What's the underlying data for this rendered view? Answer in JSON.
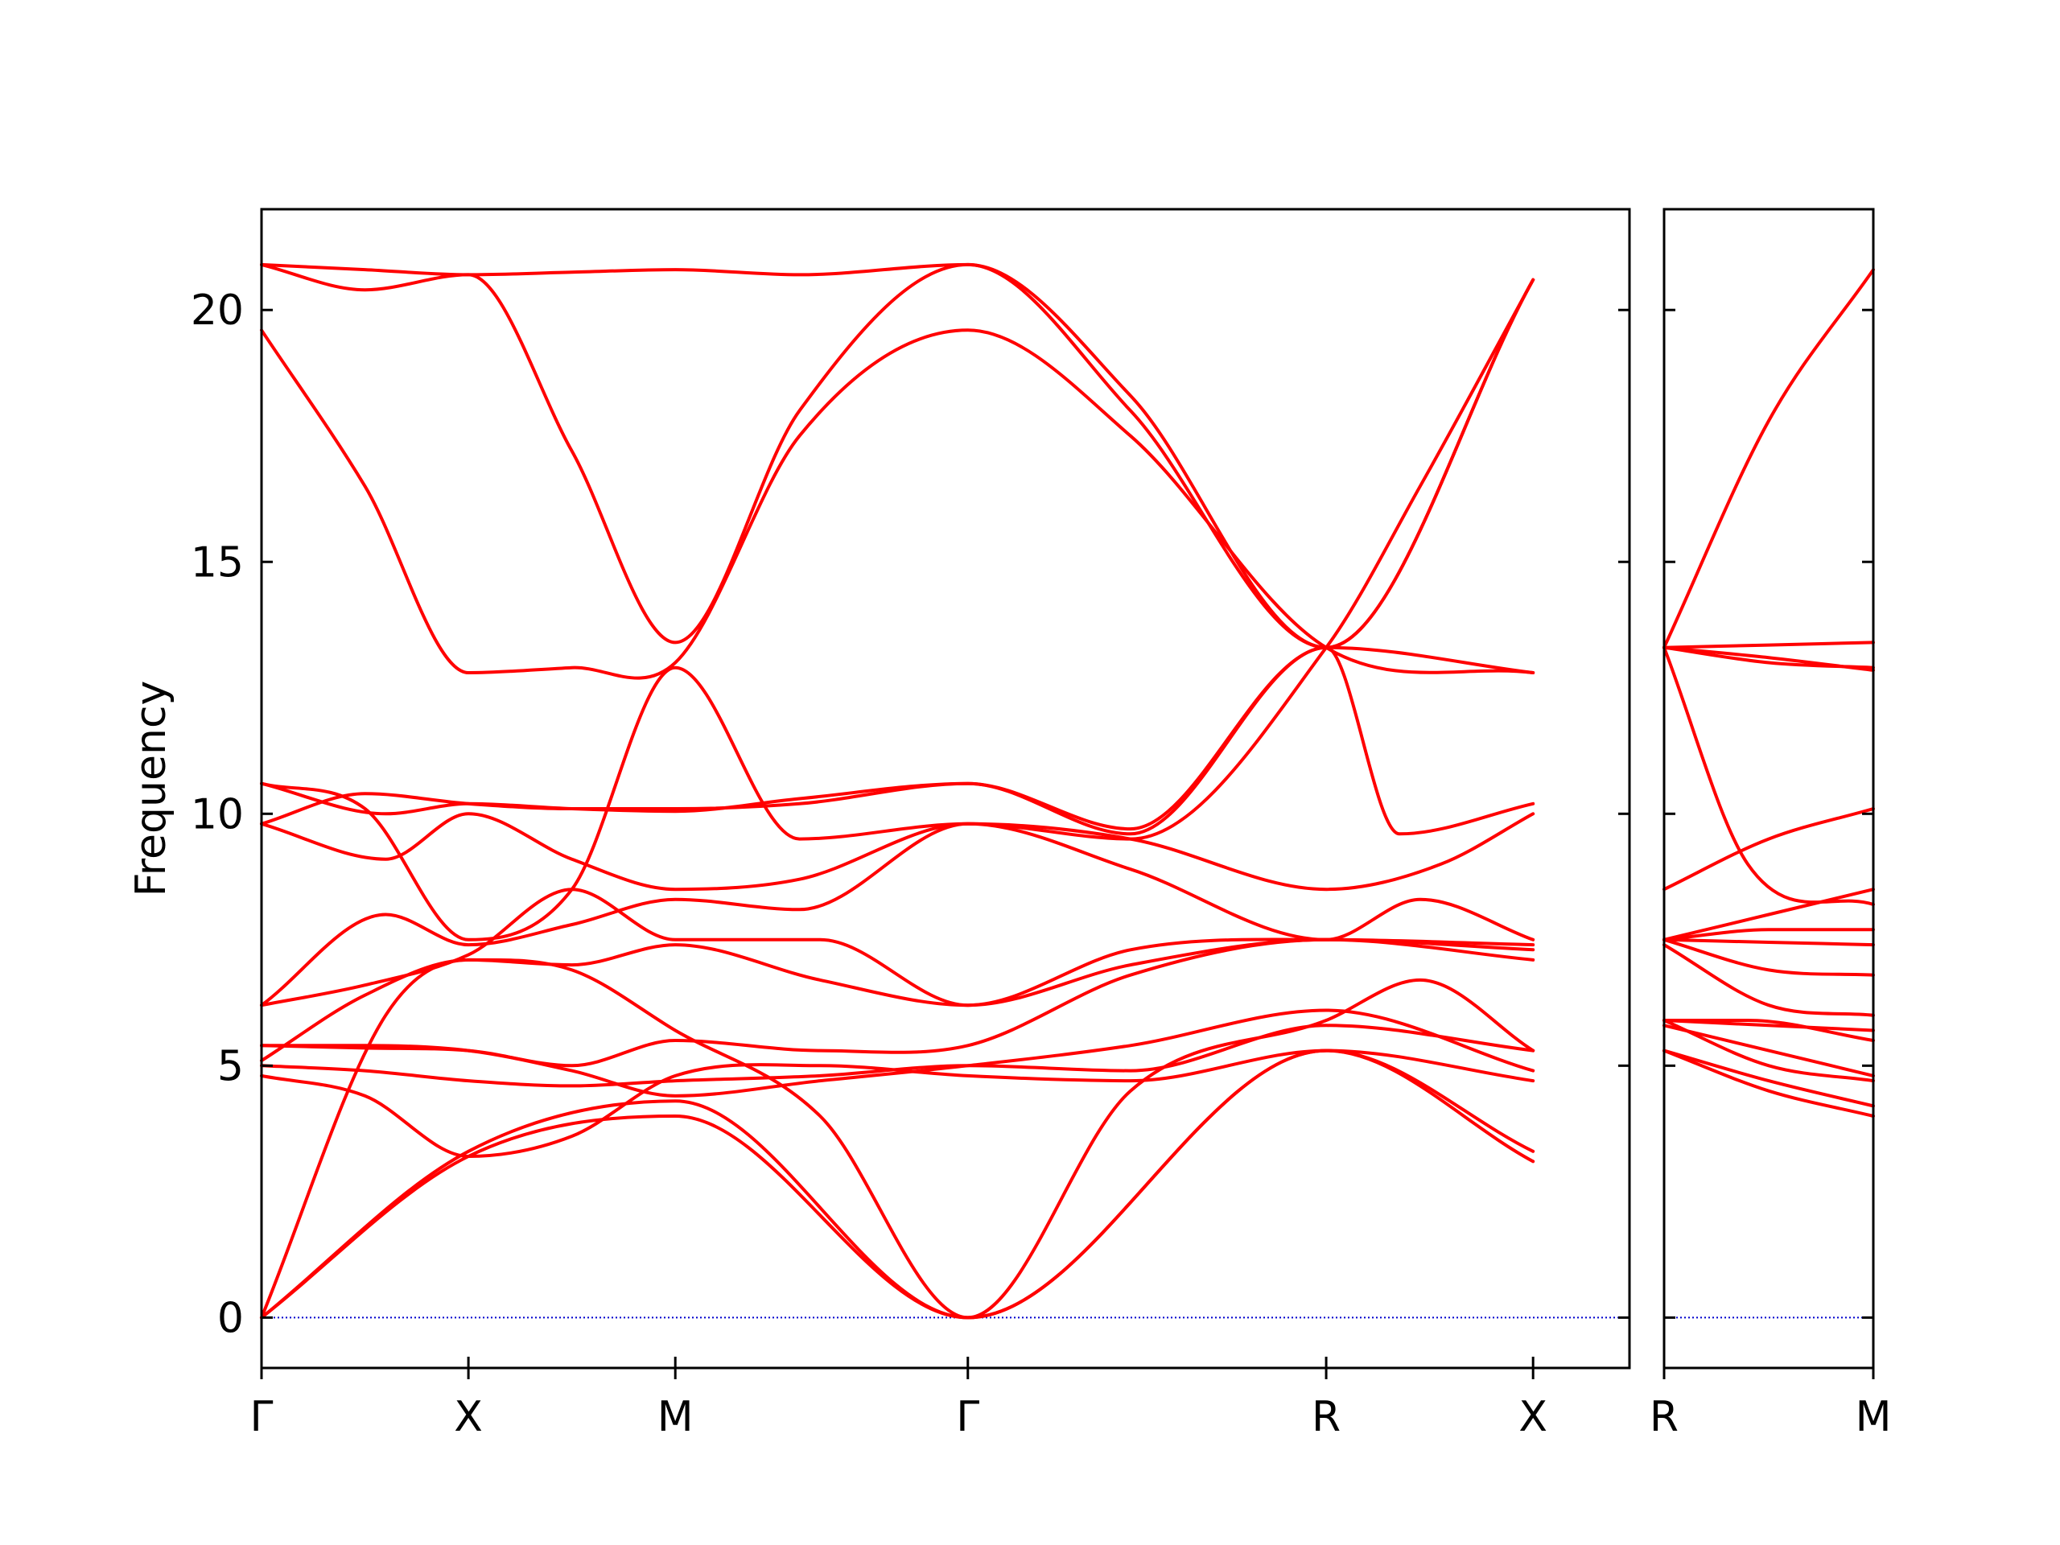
{
  "chart_data": {
    "type": "line",
    "title": "",
    "ylabel": "Frequency",
    "xlabel": "",
    "ylim": [
      -1,
      22
    ],
    "yticks": [
      0,
      5,
      10,
      15,
      20
    ],
    "line_color": "#ff0000",
    "zero_line_color": "#0000cc",
    "panels": [
      {
        "name": "main",
        "x_range": [
          0,
          6.612
        ],
        "labels": [
          {
            "x": 0.0,
            "label": "Γ"
          },
          {
            "x": 1.0,
            "label": "X"
          },
          {
            "x": 2.0,
            "label": "M"
          },
          {
            "x": 3.414,
            "label": "Γ"
          },
          {
            "x": 5.146,
            "label": "R"
          },
          {
            "x": 6.146,
            "label": "X"
          }
        ],
        "series": [
          {
            "x": [
              0,
              1,
              2,
              3.414,
              5.146,
              6.146
            ],
            "y": [
              0,
              3.2,
              4.0,
              0,
              5.3,
              3.1
            ]
          },
          {
            "x": [
              0,
              1,
              2,
              3.414,
              5.146,
              6.146
            ],
            "y": [
              0,
              3.3,
              4.3,
              0,
              5.3,
              3.3
            ]
          },
          {
            "x": [
              0,
              0.6,
              1,
              1.5,
              2,
              2.7,
              3.414,
              4.2,
              5.146,
              5.6,
              6.146
            ],
            "y": [
              0,
              6.0,
              7.1,
              6.9,
              5.7,
              4.0,
              0,
              4.5,
              5.9,
              6.7,
              5.3
            ]
          },
          {
            "x": [
              0,
              0.5,
              1,
              1.5,
              2,
              2.7,
              3.414,
              4.2,
              5.146,
              6.146
            ],
            "y": [
              4.8,
              4.4,
              3.2,
              3.6,
              4.8,
              5.0,
              4.8,
              4.7,
              5.3,
              4.7
            ]
          },
          {
            "x": [
              0,
              0.5,
              1,
              1.5,
              2,
              2.7,
              3.414,
              4.2,
              5.146,
              6.146
            ],
            "y": [
              5.0,
              4.9,
              4.7,
              4.6,
              4.7,
              4.8,
              5.0,
              4.9,
              5.8,
              5.3
            ]
          },
          {
            "x": [
              0,
              0.5,
              1,
              1.5,
              2,
              2.7,
              3.414,
              4.2,
              5.146,
              6.146
            ],
            "y": [
              5.4,
              5.4,
              5.3,
              4.9,
              4.4,
              4.7,
              5.0,
              5.4,
              6.1,
              4.9
            ]
          },
          {
            "x": [
              0,
              0.5,
              1,
              1.5,
              2,
              2.7,
              3.414,
              4.2,
              5.146,
              6.146
            ],
            "y": [
              5.4,
              5.35,
              5.3,
              5.0,
              5.5,
              5.3,
              5.4,
              6.8,
              7.5,
              7.1
            ]
          },
          {
            "x": [
              0,
              0.5,
              1,
              1.5,
              2,
              2.7,
              3.414,
              4.2,
              5.146,
              6.146
            ],
            "y": [
              5.1,
              6.4,
              7.1,
              7.0,
              7.4,
              6.7,
              6.2,
              7.3,
              7.5,
              7.3
            ]
          },
          {
            "x": [
              0,
              0.5,
              1,
              1.5,
              2,
              2.7,
              3.414,
              4.2,
              5.146,
              6.146
            ],
            "y": [
              6.2,
              6.6,
              7.2,
              8.5,
              7.5,
              7.5,
              6.2,
              7.0,
              7.5,
              7.4
            ]
          },
          {
            "x": [
              0,
              0.6,
              1,
              1.5,
              2,
              2.6,
              3.414,
              4.2,
              5.146,
              5.7,
              6.146
            ],
            "y": [
              6.2,
              8.0,
              7.4,
              7.8,
              8.3,
              8.1,
              9.8,
              9.5,
              8.5,
              9.0,
              10.0
            ]
          },
          {
            "x": [
              0,
              0.6,
              1,
              1.5,
              2,
              2.6,
              3.414,
              4.2,
              5.146,
              5.6,
              6.146
            ],
            "y": [
              9.8,
              9.1,
              10.0,
              9.1,
              8.5,
              8.7,
              9.8,
              8.9,
              7.5,
              8.3,
              7.5
            ]
          },
          {
            "x": [
              0,
              0.6,
              1,
              1.5,
              2,
              2.6,
              3.414,
              4.2,
              5.146,
              5.5,
              6.146
            ],
            "y": [
              10.6,
              10.0,
              10.2,
              10.1,
              10.05,
              10.3,
              10.6,
              9.6,
              13.3,
              9.6,
              10.2
            ]
          },
          {
            "x": [
              0,
              0.5,
              1,
              1.5,
              2,
              2.6,
              3.414,
              4.2,
              5.146,
              6.146
            ],
            "y": [
              9.8,
              10.4,
              10.2,
              10.1,
              10.1,
              10.2,
              10.6,
              9.7,
              13.3,
              12.8
            ]
          },
          {
            "x": [
              0,
              0.5,
              1,
              1.5,
              2,
              2.6,
              3.414,
              4.2,
              5.146,
              5.6,
              6.146
            ],
            "y": [
              10.6,
              10.1,
              7.5,
              8.5,
              12.9,
              9.5,
              9.8,
              9.5,
              13.3,
              16.5,
              20.6
            ]
          },
          {
            "x": [
              0,
              0.5,
              1,
              1.5,
              2,
              2.6,
              3.414,
              4.2,
              5.146,
              6.146
            ],
            "y": [
              19.6,
              16.5,
              12.8,
              12.9,
              13.0,
              17.5,
              19.6,
              17.5,
              13.3,
              12.8
            ]
          },
          {
            "x": [
              0,
              0.5,
              1,
              1.5,
              2,
              2.6,
              3.414,
              4.2,
              5.146,
              6.146
            ],
            "y": [
              20.9,
              20.4,
              20.7,
              17.2,
              13.4,
              18.0,
              20.9,
              18.0,
              13.3,
              20.6
            ]
          },
          {
            "x": [
              0,
              0.5,
              1,
              1.5,
              2,
              2.6,
              3.414,
              4.2,
              5.146,
              6.146
            ],
            "y": [
              20.9,
              20.8,
              20.7,
              20.75,
              20.8,
              20.7,
              20.9,
              18.3,
              13.3,
              20.6
            ]
          }
        ]
      },
      {
        "name": "right",
        "x_range": [
          0,
          1
        ],
        "labels": [
          {
            "x": 0.0,
            "label": "R"
          },
          {
            "x": 1.0,
            "label": "M"
          }
        ],
        "series": [
          {
            "x": [
              0,
              0.5,
              1
            ],
            "y": [
              13.3,
              17.8,
              20.8
            ]
          },
          {
            "x": [
              0,
              0.5,
              1
            ],
            "y": [
              13.3,
              13.35,
              13.4
            ]
          },
          {
            "x": [
              0,
              0.5,
              1
            ],
            "y": [
              13.3,
              13.0,
              12.9
            ]
          },
          {
            "x": [
              0,
              0.5,
              1
            ],
            "y": [
              13.3,
              13.1,
              12.85
            ]
          },
          {
            "x": [
              0,
              0.4,
              1
            ],
            "y": [
              13.3,
              9.0,
              8.2
            ]
          },
          {
            "x": [
              0,
              0.5,
              1
            ],
            "y": [
              8.5,
              9.5,
              10.1
            ]
          },
          {
            "x": [
              0,
              0.5,
              1
            ],
            "y": [
              7.5,
              7.7,
              7.7
            ]
          },
          {
            "x": [
              0,
              0.5,
              1
            ],
            "y": [
              7.5,
              8.0,
              8.5
            ]
          },
          {
            "x": [
              0,
              0.5,
              1
            ],
            "y": [
              7.5,
              7.45,
              7.4
            ]
          },
          {
            "x": [
              0,
              0.5,
              1
            ],
            "y": [
              7.5,
              6.9,
              6.8
            ]
          },
          {
            "x": [
              0,
              0.5,
              1
            ],
            "y": [
              7.4,
              6.2,
              6.0
            ]
          },
          {
            "x": [
              0,
              0.5,
              1
            ],
            "y": [
              5.9,
              5.8,
              5.7
            ]
          },
          {
            "x": [
              0,
              0.4,
              1
            ],
            "y": [
              5.9,
              5.9,
              5.5
            ]
          },
          {
            "x": [
              0,
              0.5,
              1
            ],
            "y": [
              5.8,
              5.3,
              4.8
            ]
          },
          {
            "x": [
              0,
              0.5,
              1
            ],
            "y": [
              5.9,
              5.0,
              4.7
            ]
          },
          {
            "x": [
              0,
              0.5,
              1
            ],
            "y": [
              5.3,
              4.7,
              4.2
            ]
          },
          {
            "x": [
              0,
              0.5,
              1
            ],
            "y": [
              5.3,
              4.5,
              4.0
            ]
          }
        ]
      }
    ]
  }
}
